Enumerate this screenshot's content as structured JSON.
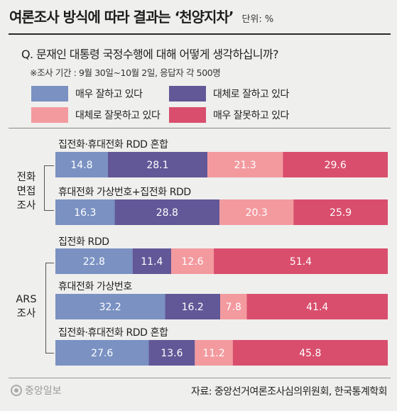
{
  "header": {
    "title": "여론조사 방식에 따라 결과는 ‘천양지차’",
    "unit": "단위: %"
  },
  "question": "Q. 문재인 대통령 국정수행에 대해 어떻게 생각하십니까?",
  "survey_note": "※조사 기간 : 9월 30일~10월 2일, 응답자 각 500명",
  "colors": {
    "very_good": "#7a91c2",
    "somewhat_good": "#625797",
    "somewhat_bad": "#f39a9f",
    "very_bad": "#d94e6d",
    "background": "#efefed"
  },
  "chart_data": {
    "type": "bar",
    "orientation": "horizontal",
    "stacked": true,
    "xlim": [
      0,
      100
    ],
    "categories": [
      "집전화·휴대전화 RDD 혼합",
      "휴대전화 가상번호+집전화 RDD",
      "집전화 RDD",
      "휴대전화 가상번호",
      "집전화·휴대전화 RDD 혼합"
    ],
    "groups": [
      {
        "name": "전화\n면접\n조사",
        "rows": [
          0,
          1
        ]
      },
      {
        "name": "ARS\n조사",
        "rows": [
          2,
          3,
          4
        ]
      }
    ],
    "series": [
      {
        "name": "매우 잘하고 있다",
        "color": "#7a91c2",
        "values": [
          14.8,
          16.3,
          22.8,
          32.2,
          27.6
        ],
        "labels": [
          "14.8",
          "16.3",
          "22.8",
          "32.2",
          "27.6"
        ]
      },
      {
        "name": "대체로 잘하고 있다",
        "color": "#625797",
        "values": [
          28.1,
          28.8,
          11.4,
          16.2,
          13.6
        ],
        "labels": [
          "28.1",
          "28.8",
          "11.4",
          "16.2",
          "13.6"
        ]
      },
      {
        "name": "대체로 잘못하고 있다",
        "color": "#f39a9f",
        "values": [
          21.3,
          20.3,
          12.6,
          7.8,
          11.2
        ],
        "labels": [
          "21.3",
          "20.3",
          "12.6",
          "7.8",
          "11.2"
        ]
      },
      {
        "name": "매우 잘못하고 있다",
        "color": "#d94e6d",
        "values": [
          29.6,
          25.9,
          51.4,
          41.4,
          45.8
        ],
        "labels": [
          "29.6",
          "25.9",
          "51.4",
          "41.4",
          "45.8"
        ]
      }
    ]
  },
  "footer": {
    "logo": "중앙일보",
    "source": "자료: 중앙선거여론조사심의위원회, 한국통계학회"
  }
}
